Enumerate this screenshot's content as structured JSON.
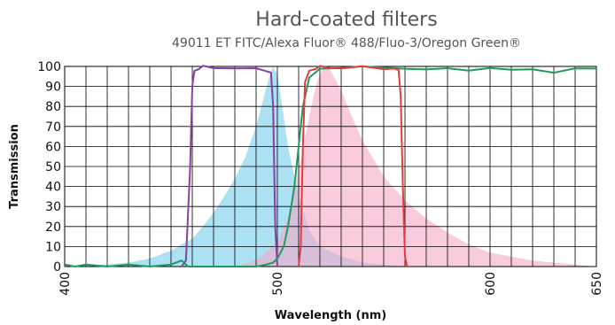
{
  "chart_data": {
    "type": "area",
    "title": "Hard-coated filters",
    "subtitle": "49011 ET FITC/Alexa Fluor® 488/Fluo-3/Oregon Green®",
    "xlabel": "Wavelength (nm)",
    "ylabel": "Transmission",
    "xlim": [
      400,
      650
    ],
    "ylim": [
      0,
      100
    ],
    "x_ticks": [
      400,
      500,
      600,
      650
    ],
    "x_tick_labels": [
      "400",
      "500",
      "600",
      "650"
    ],
    "y_ticks": [
      0,
      10,
      20,
      30,
      40,
      50,
      60,
      70,
      80,
      90,
      100
    ],
    "y_tick_labels": [
      "0",
      "10",
      "20",
      "30",
      "40",
      "50",
      "60",
      "70",
      "80",
      "90",
      "100"
    ],
    "grid": true,
    "series": [
      {
        "kind": "area",
        "color": "#9fdcf2",
        "opacity": 0.85,
        "x": [
          400,
          420,
          430,
          440,
          450,
          460,
          465,
          470,
          475,
          480,
          485,
          490,
          493,
          496,
          498,
          500,
          502,
          505,
          510,
          515,
          520,
          530,
          540,
          550,
          560
        ],
        "y": [
          0,
          1,
          2,
          4,
          8,
          14,
          20,
          27,
          35,
          44,
          55,
          70,
          82,
          94,
          100,
          96,
          82,
          60,
          35,
          18,
          10,
          5,
          2,
          1,
          0
        ]
      },
      {
        "kind": "area",
        "color": "#f4a8c6",
        "opacity": 0.6,
        "x": [
          480,
          490,
          500,
          505,
          510,
          515,
          518,
          520,
          522,
          525,
          530,
          535,
          540,
          550,
          560,
          570,
          580,
          590,
          600,
          620,
          640,
          650
        ],
        "y": [
          0,
          3,
          12,
          25,
          48,
          75,
          90,
          96,
          100,
          98,
          88,
          75,
          63,
          45,
          33,
          24,
          17,
          11,
          7,
          3,
          1,
          0
        ]
      },
      {
        "kind": "line",
        "color": "#8a3fa6",
        "x": [
          455,
          457,
          459,
          460,
          461,
          463,
          465,
          470,
          480,
          490,
          495,
          497,
          498,
          499,
          500
        ],
        "y": [
          0,
          3,
          50,
          90,
          98,
          99,
          100,
          99,
          99,
          99,
          98,
          97,
          80,
          20,
          0
        ],
        "noise": 0.5
      },
      {
        "kind": "line",
        "color": "#1e9a5e",
        "x": [
          400,
          405,
          410,
          420,
          430,
          440,
          450,
          455,
          458,
          460,
          470,
          480,
          490,
          495,
          498,
          500,
          503,
          505,
          508,
          510,
          512,
          515,
          520,
          530,
          540,
          550,
          560,
          570,
          580,
          590,
          600,
          610,
          620,
          630,
          640,
          650
        ],
        "y": [
          1,
          0,
          1,
          0,
          1,
          0,
          1,
          3,
          0,
          0,
          0,
          0,
          0,
          1,
          2,
          4,
          10,
          20,
          40,
          60,
          80,
          95,
          99,
          99,
          100,
          99,
          99,
          99,
          99,
          98,
          99,
          98,
          99,
          97,
          99,
          99
        ],
        "noise": 0.6
      },
      {
        "kind": "line",
        "color": "#e23c3c",
        "x": [
          510,
          511,
          512,
          513,
          515,
          518,
          520,
          525,
          530,
          540,
          550,
          555,
          557,
          558,
          559,
          560,
          561
        ],
        "y": [
          0,
          10,
          60,
          92,
          98,
          99,
          100,
          99,
          99,
          100,
          99,
          99,
          98,
          85,
          40,
          5,
          0
        ],
        "noise": 0.4
      }
    ]
  }
}
